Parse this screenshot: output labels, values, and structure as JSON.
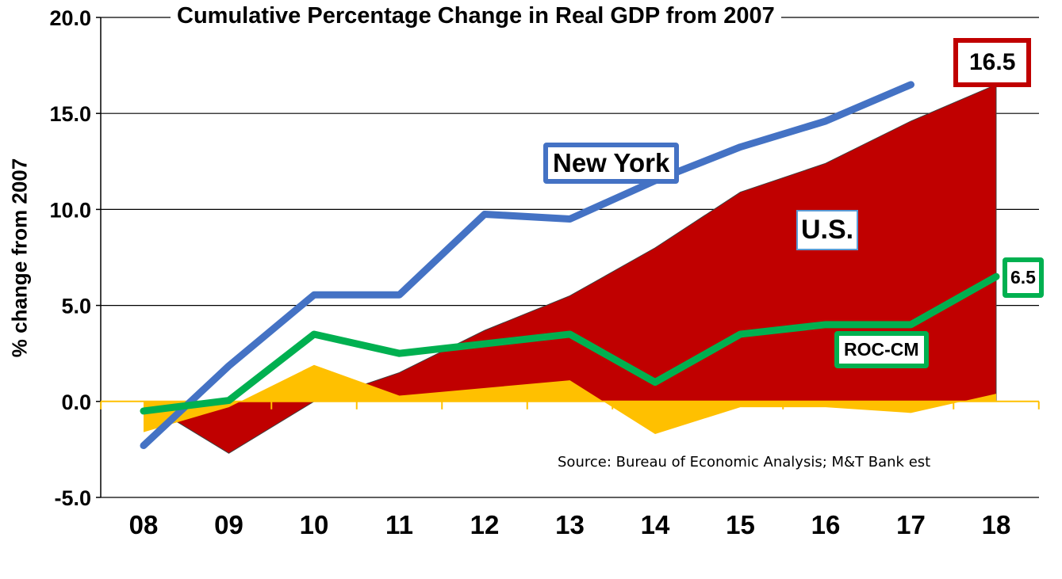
{
  "chart_data": {
    "type": "area+line",
    "title": "Cumulative Percentage Change in Real GDP from 2007",
    "xlabel": "",
    "ylabel": "% change from 2007",
    "categories": [
      "08",
      "09",
      "10",
      "11",
      "12",
      "13",
      "14",
      "15",
      "16",
      "17",
      "18"
    ],
    "ylim": [
      -5,
      20
    ],
    "yticks": [
      "20.0",
      "15.0",
      "10.0",
      "5.0",
      "0.0",
      "-5.0"
    ],
    "grid": true,
    "series": [
      {
        "name": "U.S.",
        "kind": "area",
        "color": "#C00000",
        "values": [
          0.0,
          -2.7,
          0.0,
          1.5,
          3.7,
          5.5,
          8.0,
          10.9,
          12.4,
          14.6,
          16.5
        ]
      },
      {
        "kind": "area",
        "color": "#FFC000",
        "values": [
          -1.6,
          -0.3,
          1.9,
          0.3,
          0.7,
          1.1,
          -1.7,
          -0.3,
          -0.3,
          -0.6,
          0.4
        ]
      },
      {
        "name": "New York",
        "kind": "line",
        "color": "#4472C4",
        "values": [
          -2.3,
          1.85,
          5.55,
          5.55,
          9.75,
          9.5,
          11.5,
          13.25,
          14.6,
          16.5,
          null
        ]
      },
      {
        "name": "ROC-CM",
        "kind": "line",
        "color": "#00B050",
        "values": [
          -0.5,
          0.05,
          3.5,
          2.5,
          3.0,
          3.5,
          1.0,
          3.5,
          4.0,
          4.0,
          6.5
        ]
      }
    ],
    "annotations": {
      "us_end": "16.5",
      "roc_end": "6.5",
      "source": "Source: Bureau of Economic Analysis; M&T Bank est"
    }
  }
}
